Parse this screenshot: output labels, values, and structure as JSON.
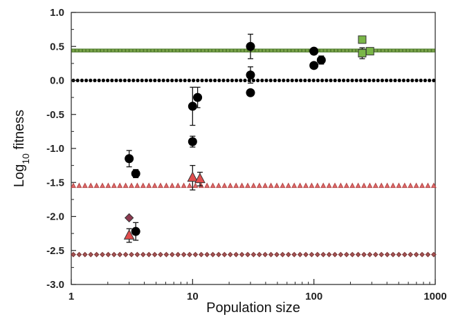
{
  "chart_data": {
    "type": "scatter",
    "title": "",
    "xlabel": "Population size",
    "ylabel_main": "Log",
    "ylabel_sub": "10",
    "ylabel_rest": " fitness",
    "x_scale": "log",
    "xlim": [
      1,
      1000
    ],
    "ylim": [
      -3.0,
      1.0
    ],
    "x_ticks": [
      1,
      10,
      100,
      1000
    ],
    "x_tick_labels": [
      "1",
      "10",
      "100",
      "1000"
    ],
    "y_ticks": [
      1.0,
      0.5,
      0.0,
      -0.5,
      -1.0,
      -1.5,
      -2.0,
      -2.5,
      -3.0
    ],
    "y_tick_labels": [
      "1.0",
      "0.5",
      "0.0",
      "-0.5",
      "-1.0",
      "-1.5",
      "-2.0",
      "-2.5",
      "-3.0"
    ],
    "grid": false,
    "legend": "none",
    "reference_lines": [
      {
        "marker": "square",
        "y": 0.44,
        "color": "#7aa34a",
        "edge": "#4d7a2a"
      },
      {
        "marker": "circle",
        "y": 0.0,
        "color": "#000000",
        "edge": "#000000"
      },
      {
        "marker": "triangle",
        "y": -1.55,
        "color": "#e26a6a",
        "edge": "#b04646"
      },
      {
        "marker": "diamond",
        "y": -2.56,
        "color": "#a65454",
        "edge": "#7a3636"
      }
    ],
    "series": [
      {
        "marker": "circle",
        "color": "#000000",
        "points": [
          {
            "x": 3.0,
            "y": -1.15,
            "err": 0.12
          },
          {
            "x": 3.4,
            "y": -1.37,
            "err": 0.06
          },
          {
            "x": 3.4,
            "y": -2.22,
            "err": 0.13
          },
          {
            "x": 10.0,
            "y": -0.38,
            "err": 0.28
          },
          {
            "x": 10.0,
            "y": -0.9,
            "err": 0.08
          },
          {
            "x": 11.0,
            "y": -0.25,
            "err": 0.15
          },
          {
            "x": 30.0,
            "y": 0.5,
            "err": 0.18
          },
          {
            "x": 30.0,
            "y": 0.08,
            "err": 0.12
          },
          {
            "x": 30.0,
            "y": -0.18,
            "err": 0.0
          },
          {
            "x": 100.0,
            "y": 0.43,
            "err": 0.0
          },
          {
            "x": 100.0,
            "y": 0.22,
            "err": 0.0
          },
          {
            "x": 115.0,
            "y": 0.3,
            "err": 0.06
          }
        ]
      },
      {
        "marker": "triangle",
        "color": "#e04e4e",
        "points": [
          {
            "x": 3.0,
            "y": -2.28,
            "err": 0.1
          },
          {
            "x": 10.0,
            "y": -1.43,
            "err": 0.18
          },
          {
            "x": 11.5,
            "y": -1.45,
            "err": 0.1
          }
        ]
      },
      {
        "marker": "diamond",
        "color": "#8c3a50",
        "points": [
          {
            "x": 3.0,
            "y": -2.02,
            "err": 0.0
          }
        ]
      },
      {
        "marker": "square",
        "color": "#7ab648",
        "points": [
          {
            "x": 250.0,
            "y": 0.6,
            "err": 0.05
          },
          {
            "x": 250.0,
            "y": 0.4,
            "err": 0.08
          },
          {
            "x": 290.0,
            "y": 0.43,
            "err": 0.05
          }
        ]
      }
    ]
  }
}
